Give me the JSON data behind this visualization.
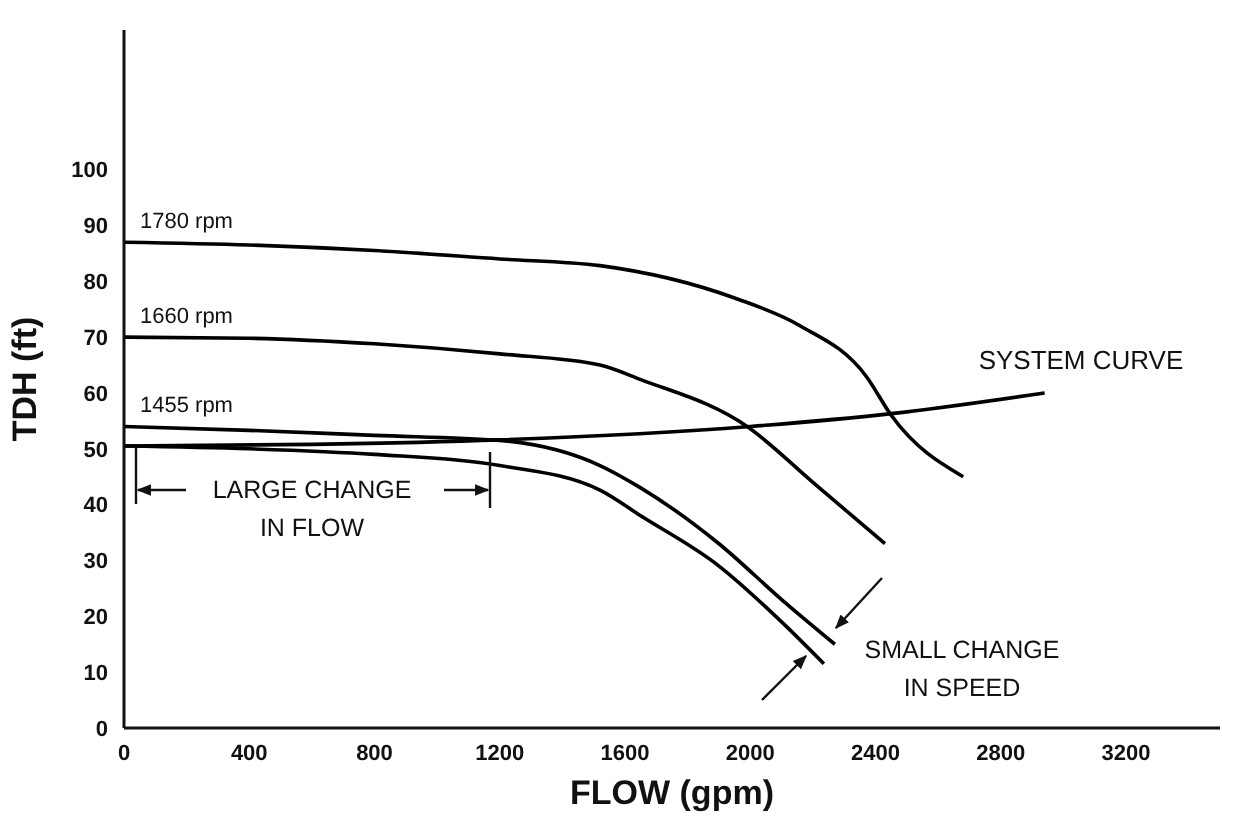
{
  "chart_data": {
    "type": "line",
    "xlabel": "FLOW (gpm)",
    "ylabel": "TDH (ft)",
    "xlim": [
      0,
      3500
    ],
    "ylim": [
      0,
      125
    ],
    "xticks": [
      0,
      400,
      800,
      1200,
      1600,
      2000,
      2400,
      2800,
      3200
    ],
    "yticks": [
      0,
      10,
      20,
      30,
      40,
      50,
      60,
      70,
      80,
      90,
      100
    ],
    "marker": "none",
    "line_style": "solid",
    "series": [
      {
        "name": "1780 rpm",
        "color": "#000000",
        "x": [
          0,
          400,
          800,
          1200,
          1520,
          1950,
          2160,
          2370,
          2450,
          2680
        ],
        "values": [
          87,
          86.5,
          85.5,
          84,
          82.8,
          77,
          72,
          63,
          56,
          45
        ]
      },
      {
        "name": "1660 rpm",
        "color": "#000000",
        "x": [
          0,
          400,
          800,
          1200,
          1520,
          1650,
          1990,
          2200,
          2430
        ],
        "values": [
          70,
          69.8,
          68.8,
          67,
          65,
          62.4,
          54,
          44,
          33
        ]
      },
      {
        "name": "1455 rpm",
        "color": "#000000",
        "x": [
          0,
          400,
          800,
          1200,
          1520,
          1650,
          1900,
          2100,
          2270
        ],
        "values": [
          54,
          53.3,
          52.4,
          51.5,
          47,
          43,
          33,
          23,
          15
        ]
      },
      {
        "color": "#000000",
        "x": [
          0,
          400,
          800,
          1200,
          1520,
          1650,
          1900,
          2100,
          2235
        ],
        "values": [
          50.5,
          50,
          49,
          47,
          42.6,
          38,
          29,
          19,
          11.5
        ]
      },
      {
        "name": "SYSTEM CURVE",
        "color": "#000000",
        "x": [
          0,
          600,
          1200,
          2000,
          2450,
          2940
        ],
        "values": [
          50.5,
          50.8,
          51.6,
          54,
          56.3,
          60
        ]
      }
    ],
    "annotations": [
      "LARGE CHANGE IN FLOW",
      "SMALL CHANGE IN SPEED"
    ]
  }
}
